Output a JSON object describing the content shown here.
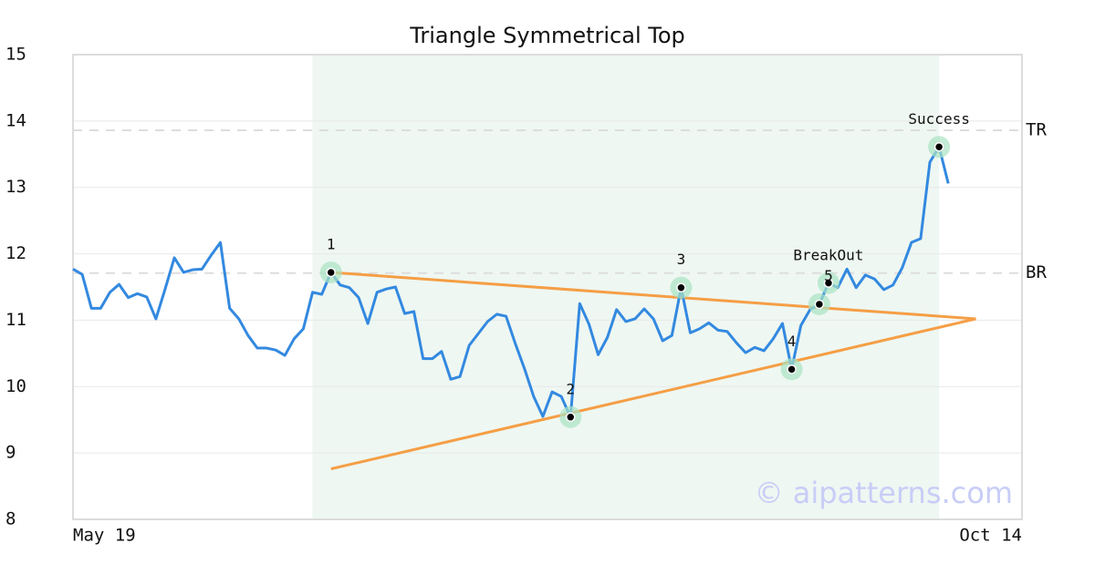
{
  "chart_data": {
    "type": "line",
    "title": "Triangle Symmetrical Top",
    "categories": [
      "May 19",
      null,
      null,
      null,
      null,
      null,
      null,
      null,
      null,
      null,
      null,
      null,
      null,
      null,
      null,
      null,
      null,
      null,
      null,
      null,
      null,
      null,
      null,
      null,
      null,
      null,
      null,
      null,
      null,
      null,
      null,
      null,
      null,
      null,
      null,
      null,
      null,
      null,
      null,
      null,
      null,
      null,
      null,
      null,
      null,
      null,
      null,
      null,
      null,
      null,
      null,
      null,
      null,
      null,
      null,
      null,
      null,
      null,
      null,
      null,
      null,
      null,
      null,
      null,
      null,
      null,
      null,
      null,
      null,
      null,
      null,
      null,
      null,
      null,
      null,
      null,
      null,
      null,
      null,
      null,
      null,
      null,
      null,
      null,
      null,
      null,
      null,
      null,
      null,
      null,
      null,
      null,
      null,
      null,
      null,
      null,
      null,
      null,
      null,
      null,
      null,
      null,
      null,
      "Oct 14"
    ],
    "values": [
      11.77,
      11.69,
      11.18,
      11.18,
      11.42,
      11.54,
      11.34,
      11.4,
      11.35,
      11.02,
      11.47,
      11.94,
      11.72,
      11.76,
      11.77,
      11.98,
      12.17,
      11.18,
      11.02,
      10.77,
      10.58,
      10.58,
      10.55,
      10.47,
      10.72,
      10.87,
      11.42,
      11.39,
      11.72,
      11.53,
      11.49,
      11.34,
      10.95,
      11.42,
      11.47,
      11.5,
      11.1,
      11.13,
      10.42,
      10.42,
      10.53,
      10.11,
      10.15,
      10.62,
      10.8,
      10.98,
      11.09,
      11.06,
      10.65,
      10.27,
      9.85,
      9.55,
      9.92,
      9.85,
      9.54,
      11.25,
      10.94,
      10.48,
      10.74,
      11.16,
      10.98,
      11.02,
      11.17,
      11.02,
      10.69,
      10.77,
      11.49,
      10.81,
      10.87,
      10.96,
      10.85,
      10.83,
      10.66,
      10.51,
      10.59,
      10.54,
      10.72,
      10.95,
      10.26,
      10.92,
      11.16,
      11.24,
      11.56,
      11.49,
      11.77,
      11.49,
      11.68,
      11.62,
      11.46,
      11.53,
      11.79,
      12.17,
      12.23,
      13.38,
      13.61,
      13.06,
      null,
      null,
      null,
      null,
      null,
      null,
      null,
      null
    ],
    "color": "#3389e0",
    "ylim": [
      8,
      15
    ],
    "yticks": [
      8,
      9,
      10,
      11,
      12,
      13,
      14,
      15
    ],
    "grid": true,
    "shade": {
      "from": 26,
      "to": 94,
      "color": "#eef7f2"
    },
    "markers": [
      {
        "label": "1",
        "index": 28,
        "value": 11.72
      },
      {
        "label": "2",
        "index": 54,
        "value": 9.54
      },
      {
        "label": "3",
        "index": 66,
        "value": 11.49
      },
      {
        "label": "4",
        "index": 78,
        "value": 10.26
      },
      {
        "label": "BreakOut",
        "index": 81,
        "value": 11.24
      },
      {
        "label": "5",
        "index": 82,
        "value": 11.56
      },
      {
        "label": "Success",
        "index": 94,
        "value": 13.61
      }
    ],
    "trendlines": [
      {
        "color": "#f59e45",
        "x": [
          28,
          98
        ],
        "values": [
          11.72,
          11.02
        ]
      },
      {
        "color": "#f59e45",
        "x": [
          28,
          98
        ],
        "values": [
          8.76,
          11.02
        ]
      }
    ],
    "levels": [
      {
        "label": "TR",
        "value": 13.86
      },
      {
        "label": "BR",
        "value": 11.71
      }
    ],
    "watermark": "© aipatterns.com"
  }
}
